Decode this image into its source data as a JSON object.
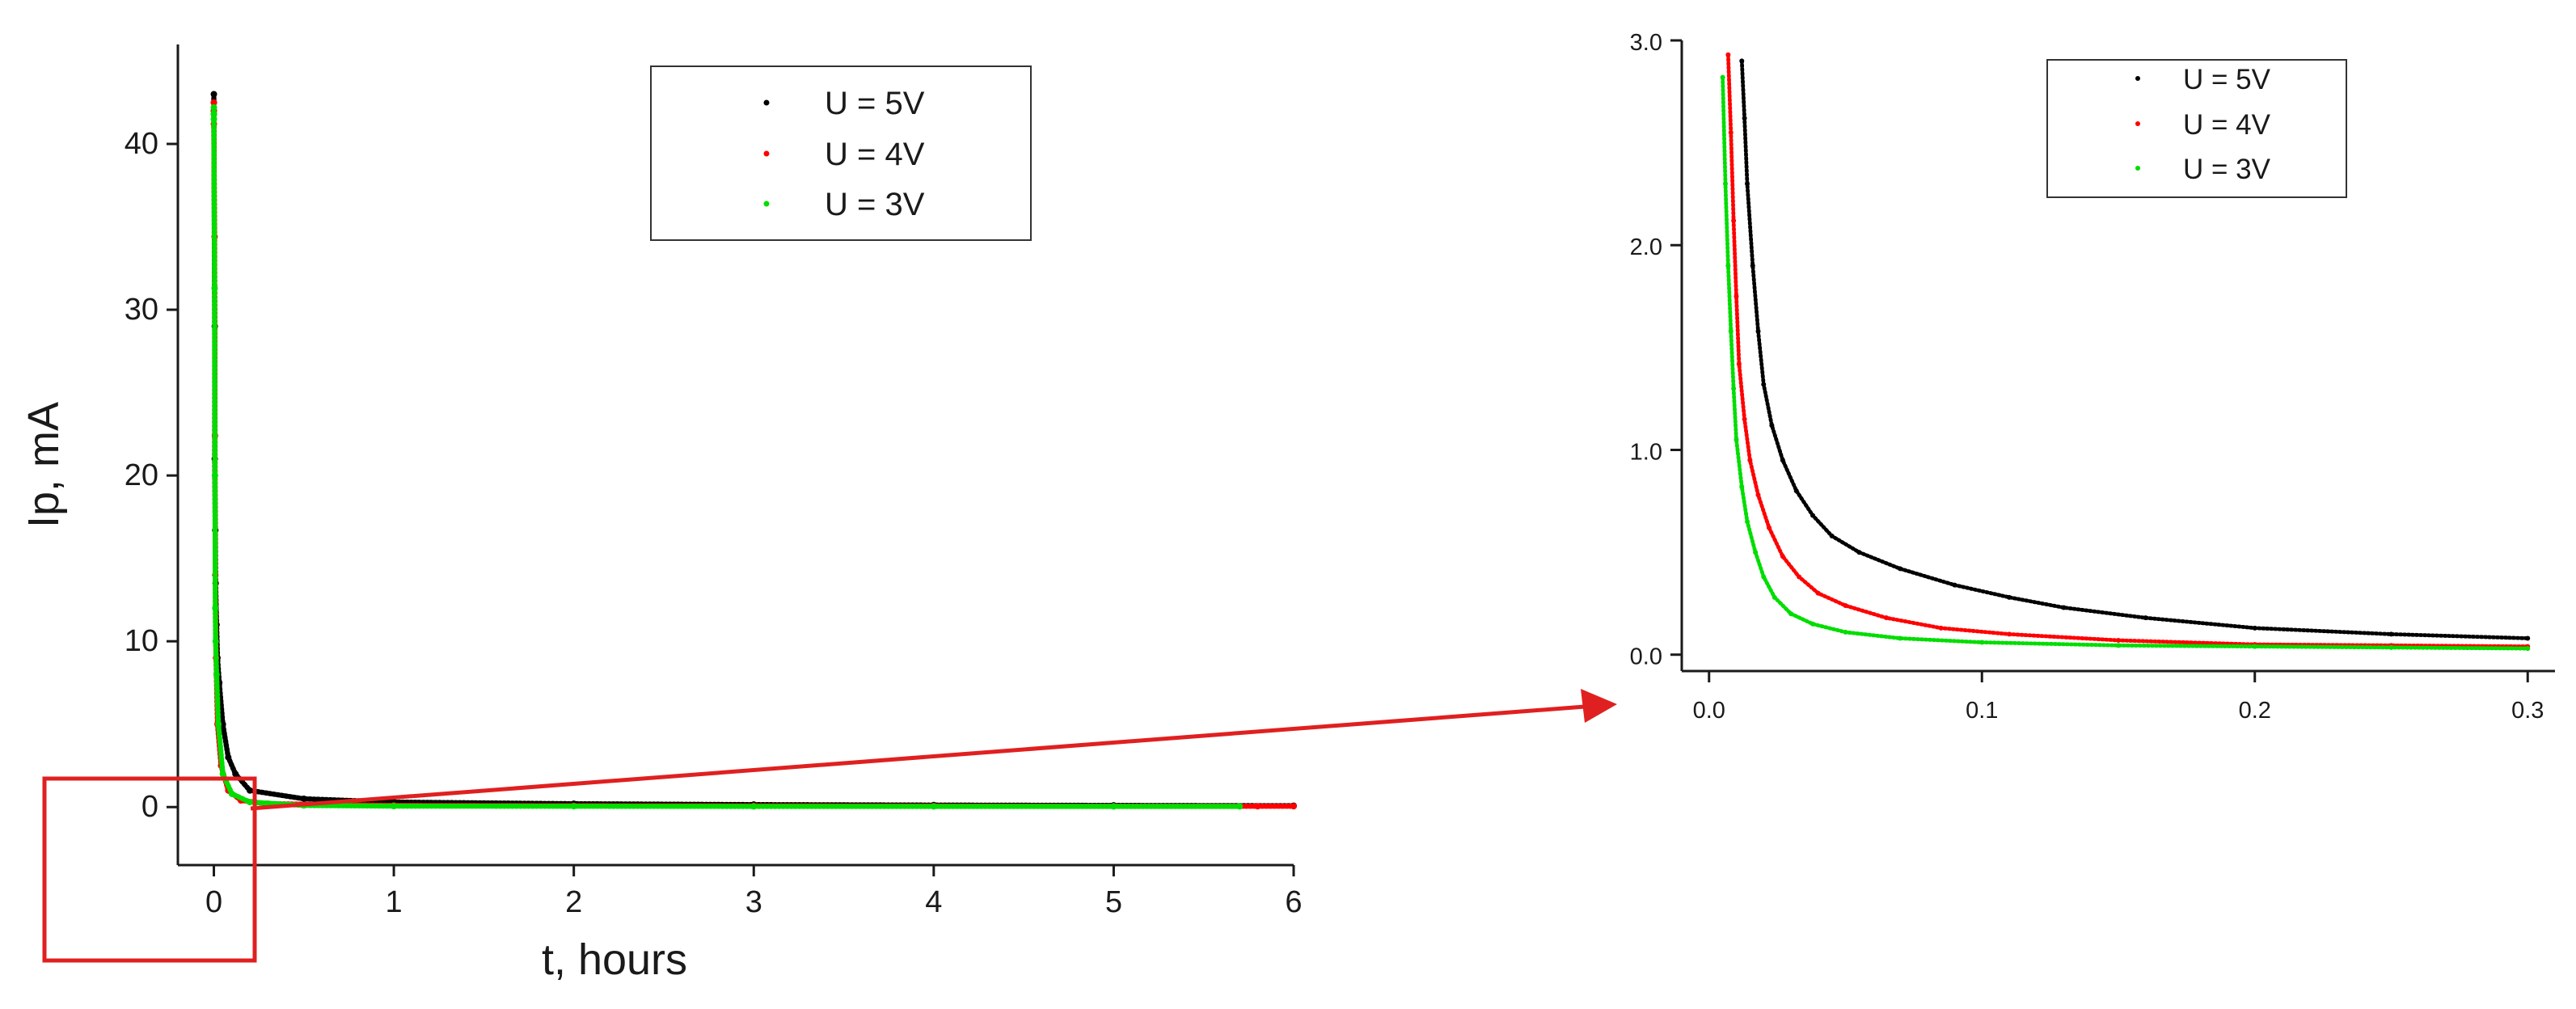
{
  "chart_data": [
    {
      "type": "scatter",
      "title": "",
      "xlabel": "t, hours",
      "ylabel": "Ip, mA",
      "xlim": [
        -0.2,
        6.0
      ],
      "ylim": [
        -3.5,
        46
      ],
      "x_ticks": [
        0,
        1,
        2,
        3,
        4,
        5,
        6
      ],
      "y_ticks": [
        0,
        10,
        20,
        30,
        40
      ],
      "legend_position": "top-center",
      "grid": false,
      "series": [
        {
          "name": "U = 5V",
          "color": "#000000",
          "x": [
            0.0,
            0.0,
            0.0,
            0.0,
            0.005,
            0.005,
            0.008,
            0.01,
            0.015,
            0.02,
            0.03,
            0.05,
            0.08,
            0.12,
            0.2,
            0.5,
            1.0,
            2.0,
            3.0,
            4.0,
            5.0,
            6.0
          ],
          "y": [
            43,
            42.5,
            42,
            41.8,
            29,
            21,
            16.7,
            13.5,
            11,
            9,
            7.5,
            5,
            3,
            2,
            1,
            0.5,
            0.3,
            0.2,
            0.15,
            0.12,
            0.1,
            0.08
          ]
        },
        {
          "name": "U = 4V",
          "color": "#ff0000",
          "x": [
            0.0,
            0.0,
            0.0,
            0.004,
            0.006,
            0.008,
            0.012,
            0.02,
            0.04,
            0.08,
            0.15,
            0.3,
            1.0,
            2.0,
            3.0,
            4.0,
            5.0,
            5.8,
            6.0
          ],
          "y": [
            42.5,
            42,
            41.2,
            34.4,
            22.4,
            14,
            9,
            5,
            2.5,
            1,
            0.4,
            0.2,
            0.1,
            0.08,
            0.07,
            0.06,
            0.05,
            0.05,
            0.05
          ]
        },
        {
          "name": "U = 3V",
          "color": "#00dd00",
          "x": [
            0.0,
            0.0,
            0.0,
            0.004,
            0.006,
            0.008,
            0.01,
            0.015,
            0.025,
            0.05,
            0.1,
            0.2,
            0.5,
            1.0,
            2.0,
            3.0,
            4.0,
            5.0,
            5.7
          ],
          "y": [
            42.2,
            41.8,
            41.5,
            31.3,
            20,
            12,
            10,
            8,
            5,
            2,
            0.8,
            0.3,
            0.1,
            0.06,
            0.05,
            0.04,
            0.04,
            0.04,
            0.04
          ]
        }
      ]
    },
    {
      "type": "scatter",
      "title": "",
      "xlabel": "",
      "ylabel": "",
      "xlim": [
        -0.01,
        0.31
      ],
      "ylim": [
        -0.08,
        3.0
      ],
      "x_ticks": [
        0.0,
        0.1,
        0.2,
        0.3
      ],
      "x_tick_labels": [
        "0.0",
        "0.1",
        "0.2",
        "0.3"
      ],
      "y_ticks": [
        0.0,
        1.0,
        2.0,
        3.0
      ],
      "y_tick_labels": [
        "0.0",
        "1.0",
        "2.0",
        "3.0"
      ],
      "legend_position": "top-center",
      "grid": false,
      "series": [
        {
          "name": "U = 5V",
          "color": "#000000",
          "x": [
            0.012,
            0.013,
            0.014,
            0.016,
            0.018,
            0.02,
            0.023,
            0.027,
            0.032,
            0.038,
            0.045,
            0.055,
            0.07,
            0.09,
            0.11,
            0.13,
            0.16,
            0.2,
            0.25,
            0.3
          ],
          "y": [
            2.9,
            2.62,
            2.3,
            1.9,
            1.58,
            1.32,
            1.12,
            0.95,
            0.8,
            0.68,
            0.58,
            0.5,
            0.42,
            0.34,
            0.28,
            0.23,
            0.18,
            0.13,
            0.1,
            0.08
          ]
        },
        {
          "name": "U = 4V",
          "color": "#ff0000",
          "x": [
            0.007,
            0.008,
            0.009,
            0.01,
            0.011,
            0.013,
            0.015,
            0.018,
            0.022,
            0.027,
            0.033,
            0.04,
            0.05,
            0.065,
            0.085,
            0.11,
            0.15,
            0.2,
            0.25,
            0.3
          ],
          "y": [
            2.93,
            2.55,
            2.12,
            1.75,
            1.42,
            1.15,
            0.95,
            0.78,
            0.62,
            0.48,
            0.38,
            0.3,
            0.24,
            0.18,
            0.13,
            0.1,
            0.07,
            0.05,
            0.045,
            0.04
          ]
        },
        {
          "name": "U = 3V",
          "color": "#00dd00",
          "x": [
            0.005,
            0.006,
            0.007,
            0.008,
            0.009,
            0.01,
            0.012,
            0.014,
            0.017,
            0.02,
            0.024,
            0.03,
            0.038,
            0.05,
            0.07,
            0.1,
            0.15,
            0.2,
            0.25,
            0.3
          ],
          "y": [
            2.82,
            2.3,
            1.9,
            1.58,
            1.3,
            1.05,
            0.82,
            0.65,
            0.5,
            0.38,
            0.28,
            0.2,
            0.15,
            0.11,
            0.08,
            0.06,
            0.045,
            0.04,
            0.035,
            0.03
          ]
        }
      ]
    }
  ],
  "overlay": {
    "zoom_box_color": "#e02020",
    "arrow_color": "#e02020"
  }
}
